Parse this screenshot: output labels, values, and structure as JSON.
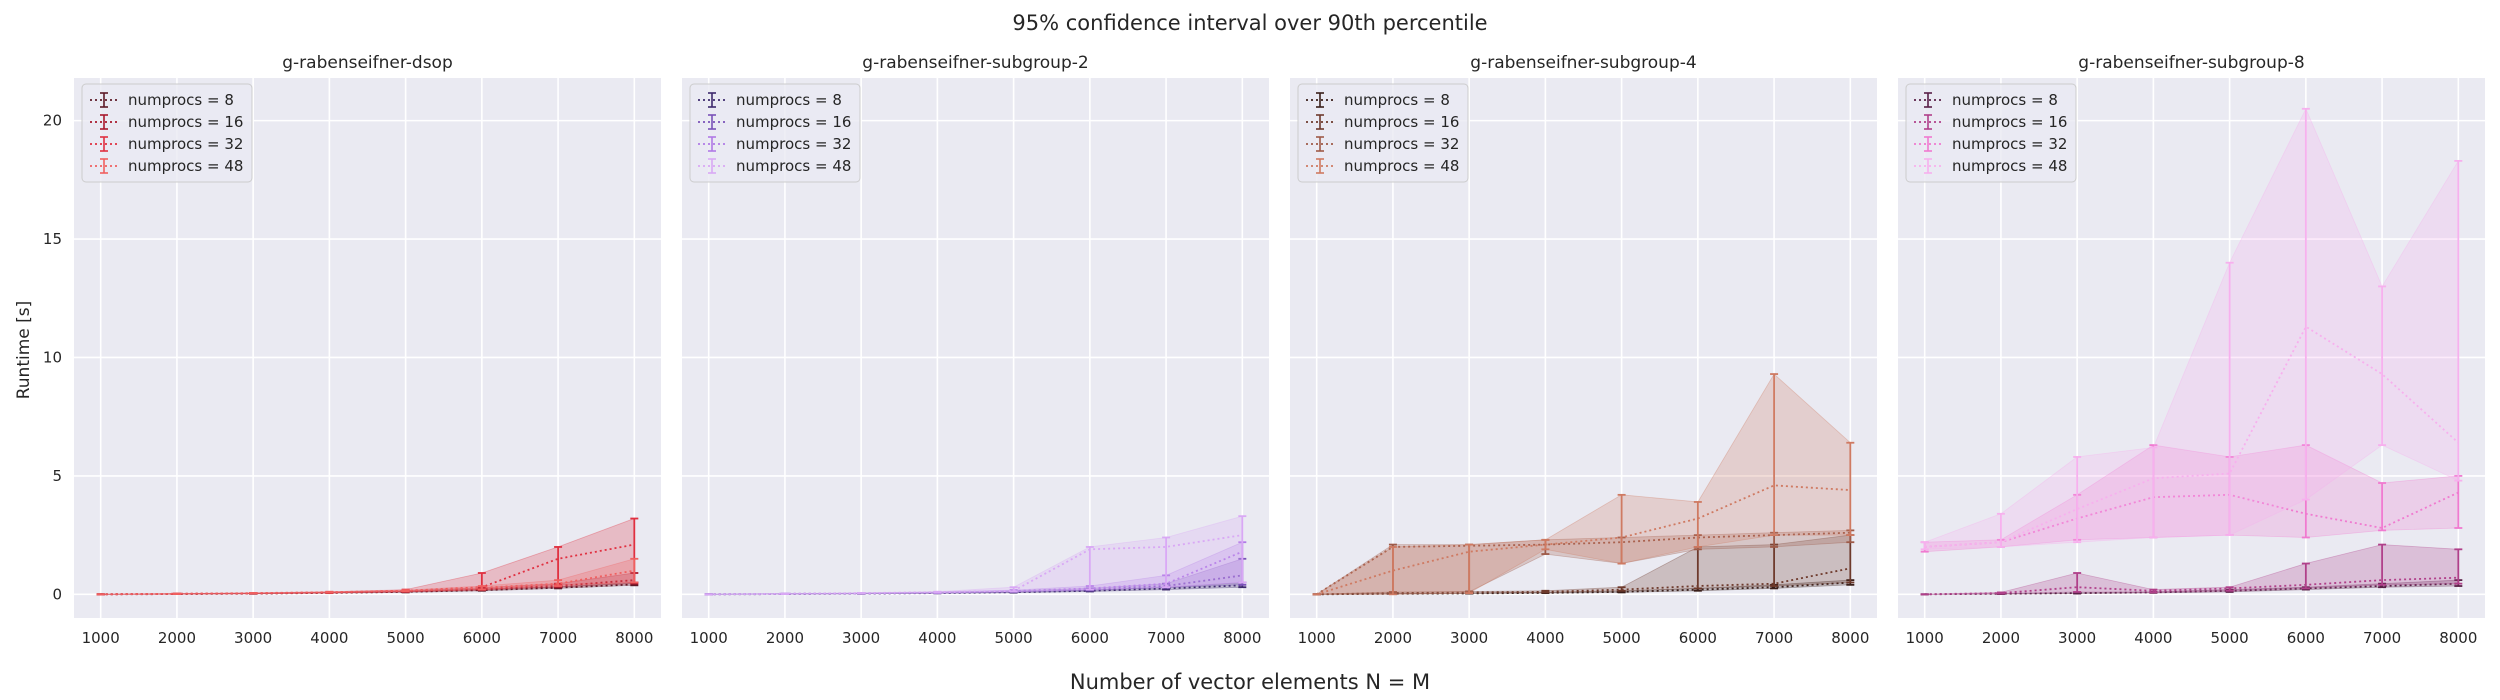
{
  "figure": {
    "title": "95% confidence interval over 90th percentile",
    "xlabel": "Number of vector elements N = M",
    "ylabel": "Runtime [s]"
  },
  "chart_data": [
    {
      "type": "line",
      "title": "g-rabenseifner-dsop",
      "x": [
        1000,
        2000,
        3000,
        4000,
        5000,
        6000,
        7000,
        8000
      ],
      "xticks": [
        1000,
        2000,
        3000,
        4000,
        5000,
        6000,
        7000,
        8000
      ],
      "xlim": [
        650,
        8350
      ],
      "ylim": [
        -1.0,
        21.8
      ],
      "yticks": [
        0,
        5,
        10,
        15,
        20
      ],
      "grid": true,
      "legend": "top-left",
      "series": [
        {
          "name": "numprocs = 8",
          "color": "#5e1a28",
          "mean": [
            0.0,
            0.01,
            0.03,
            0.06,
            0.1,
            0.18,
            0.28,
            0.42
          ],
          "low": [
            0.0,
            0.01,
            0.02,
            0.05,
            0.08,
            0.15,
            0.25,
            0.38
          ],
          "high": [
            0.0,
            0.02,
            0.04,
            0.07,
            0.12,
            0.22,
            0.32,
            0.5
          ]
        },
        {
          "name": "numprocs = 16",
          "color": "#a8182c",
          "mean": [
            0.0,
            0.02,
            0.04,
            0.07,
            0.12,
            0.22,
            0.35,
            0.6
          ],
          "low": [
            0.0,
            0.01,
            0.03,
            0.06,
            0.1,
            0.18,
            0.3,
            0.45
          ],
          "high": [
            0.0,
            0.02,
            0.05,
            0.09,
            0.15,
            0.28,
            0.45,
            0.9
          ]
        },
        {
          "name": "numprocs = 32",
          "color": "#e03040",
          "mean": [
            0.0,
            0.02,
            0.04,
            0.08,
            0.15,
            0.3,
            1.5,
            2.1
          ],
          "low": [
            0.0,
            0.01,
            0.03,
            0.06,
            0.12,
            0.2,
            0.4,
            0.5
          ],
          "high": [
            0.0,
            0.03,
            0.06,
            0.1,
            0.2,
            0.9,
            2.0,
            3.2
          ]
        },
        {
          "name": "numprocs = 48",
          "color": "#f06060",
          "mean": [
            0.0,
            0.02,
            0.05,
            0.09,
            0.15,
            0.28,
            0.45,
            1.0
          ],
          "low": [
            0.0,
            0.01,
            0.04,
            0.07,
            0.12,
            0.2,
            0.35,
            0.5
          ],
          "high": [
            0.0,
            0.03,
            0.06,
            0.11,
            0.18,
            0.35,
            0.6,
            1.5
          ]
        }
      ]
    },
    {
      "type": "line",
      "title": "g-rabenseifner-subgroup-2",
      "x": [
        1000,
        2000,
        3000,
        4000,
        5000,
        6000,
        7000,
        8000
      ],
      "xticks": [
        1000,
        2000,
        3000,
        4000,
        5000,
        6000,
        7000,
        8000
      ],
      "xlim": [
        650,
        8350
      ],
      "ylim": [
        -1.0,
        21.8
      ],
      "yticks": [
        0,
        5,
        10,
        15,
        20
      ],
      "grid": true,
      "legend": "top-left",
      "series": [
        {
          "name": "numprocs = 8",
          "color": "#3e2a6e",
          "mean": [
            0.0,
            0.01,
            0.03,
            0.05,
            0.09,
            0.15,
            0.25,
            0.38
          ],
          "low": [
            0.0,
            0.01,
            0.02,
            0.04,
            0.07,
            0.12,
            0.2,
            0.3
          ],
          "high": [
            0.0,
            0.02,
            0.04,
            0.06,
            0.11,
            0.18,
            0.3,
            0.5
          ]
        },
        {
          "name": "numprocs = 16",
          "color": "#7a52b8",
          "mean": [
            0.0,
            0.02,
            0.04,
            0.07,
            0.12,
            0.2,
            0.35,
            0.8
          ],
          "low": [
            0.0,
            0.01,
            0.03,
            0.05,
            0.1,
            0.16,
            0.28,
            0.4
          ],
          "high": [
            0.0,
            0.02,
            0.05,
            0.08,
            0.15,
            0.25,
            0.45,
            1.5
          ]
        },
        {
          "name": "numprocs = 32",
          "color": "#b07ae6",
          "mean": [
            0.0,
            0.02,
            0.04,
            0.08,
            0.14,
            0.25,
            0.45,
            1.8
          ],
          "low": [
            0.0,
            0.01,
            0.03,
            0.06,
            0.11,
            0.2,
            0.3,
            0.5
          ],
          "high": [
            0.0,
            0.03,
            0.05,
            0.1,
            0.18,
            0.35,
            0.8,
            2.2
          ]
        },
        {
          "name": "numprocs = 48",
          "color": "#d9a8f5",
          "mean": [
            0.0,
            0.02,
            0.05,
            0.09,
            0.15,
            1.9,
            2.0,
            2.5
          ],
          "low": [
            0.0,
            0.01,
            0.04,
            0.07,
            0.12,
            0.2,
            0.3,
            0.5
          ],
          "high": [
            0.0,
            0.03,
            0.06,
            0.11,
            0.3,
            2.0,
            2.4,
            3.3
          ]
        }
      ]
    },
    {
      "type": "line",
      "title": "g-rabenseifner-subgroup-4",
      "x": [
        1000,
        2000,
        3000,
        4000,
        5000,
        6000,
        7000,
        8000
      ],
      "xticks": [
        1000,
        2000,
        3000,
        4000,
        5000,
        6000,
        7000,
        8000
      ],
      "xlim": [
        650,
        8350
      ],
      "ylim": [
        -1.0,
        21.8
      ],
      "yticks": [
        0,
        5,
        10,
        15,
        20
      ],
      "grid": true,
      "legend": "top-left",
      "series": [
        {
          "name": "numprocs = 8",
          "color": "#3a1f1a",
          "mean": [
            0.0,
            0.02,
            0.04,
            0.06,
            0.1,
            0.2,
            0.3,
            0.5
          ],
          "low": [
            0.0,
            0.01,
            0.03,
            0.05,
            0.08,
            0.15,
            0.25,
            0.4
          ],
          "high": [
            0.0,
            0.03,
            0.05,
            0.08,
            0.13,
            0.25,
            0.4,
            0.6
          ]
        },
        {
          "name": "numprocs = 16",
          "color": "#6e3a2c",
          "mean": [
            0.0,
            0.05,
            0.08,
            0.1,
            0.2,
            0.35,
            0.45,
            1.1
          ],
          "low": [
            0.0,
            0.03,
            0.05,
            0.08,
            0.15,
            0.25,
            0.35,
            0.5
          ],
          "high": [
            0.0,
            0.08,
            0.12,
            0.15,
            0.3,
            2.0,
            2.1,
            2.5
          ]
        },
        {
          "name": "numprocs = 32",
          "color": "#9e5a48",
          "mean": [
            0.0,
            2.0,
            2.05,
            2.1,
            2.2,
            2.4,
            2.5,
            2.6
          ],
          "low": [
            0.0,
            0.1,
            0.1,
            1.7,
            1.3,
            1.9,
            2.0,
            2.2
          ],
          "high": [
            0.0,
            2.1,
            2.1,
            2.3,
            2.4,
            2.5,
            2.6,
            2.7
          ]
        },
        {
          "name": "numprocs = 48",
          "color": "#cf7a62",
          "mean": [
            0.0,
            1.0,
            1.8,
            2.1,
            2.4,
            3.2,
            4.6,
            4.4
          ],
          "low": [
            0.0,
            0.0,
            0.05,
            1.9,
            1.3,
            2.0,
            2.5,
            2.5
          ],
          "high": [
            0.0,
            2.0,
            2.1,
            2.3,
            4.2,
            3.9,
            9.3,
            6.4
          ]
        }
      ]
    },
    {
      "type": "line",
      "title": "g-rabenseifner-subgroup-8",
      "x": [
        1000,
        2000,
        3000,
        4000,
        5000,
        6000,
        7000,
        8000
      ],
      "xticks": [
        1000,
        2000,
        3000,
        4000,
        5000,
        6000,
        7000,
        8000
      ],
      "xlim": [
        650,
        8350
      ],
      "ylim": [
        -1.0,
        21.8
      ],
      "yticks": [
        0,
        5,
        10,
        15,
        20
      ],
      "grid": true,
      "legend": "top-left",
      "series": [
        {
          "name": "numprocs = 8",
          "color": "#5a2048",
          "mean": [
            0.0,
            0.02,
            0.05,
            0.08,
            0.15,
            0.25,
            0.35,
            0.45
          ],
          "low": [
            0.0,
            0.01,
            0.03,
            0.06,
            0.1,
            0.2,
            0.3,
            0.35
          ],
          "high": [
            0.0,
            0.03,
            0.07,
            0.1,
            0.2,
            0.3,
            0.45,
            0.6
          ]
        },
        {
          "name": "numprocs = 16",
          "color": "#b0408a",
          "mean": [
            0.0,
            0.05,
            0.3,
            0.15,
            0.25,
            0.4,
            0.6,
            0.7
          ],
          "low": [
            0.0,
            0.03,
            0.1,
            0.08,
            0.15,
            0.25,
            0.4,
            0.45
          ],
          "high": [
            0.0,
            0.08,
            0.9,
            0.2,
            0.3,
            1.3,
            2.1,
            1.9
          ]
        },
        {
          "name": "numprocs = 32",
          "color": "#f07ad0",
          "mean": [
            2.0,
            2.2,
            3.2,
            4.1,
            4.2,
            3.4,
            2.8,
            4.3
          ],
          "low": [
            1.8,
            2.0,
            2.3,
            2.4,
            2.5,
            2.4,
            2.7,
            2.8
          ],
          "high": [
            2.2,
            2.3,
            4.2,
            6.3,
            5.8,
            6.3,
            4.7,
            5.0
          ]
        },
        {
          "name": "numprocs = 48",
          "color": "#f7b0ee",
          "mean": [
            2.0,
            2.2,
            3.6,
            4.9,
            5.1,
            11.3,
            9.3,
            6.4
          ],
          "low": [
            1.9,
            2.0,
            2.2,
            2.4,
            2.5,
            4.0,
            6.3,
            4.8
          ],
          "high": [
            2.2,
            3.4,
            5.8,
            6.2,
            14.0,
            20.5,
            13.0,
            18.3
          ]
        }
      ]
    }
  ]
}
